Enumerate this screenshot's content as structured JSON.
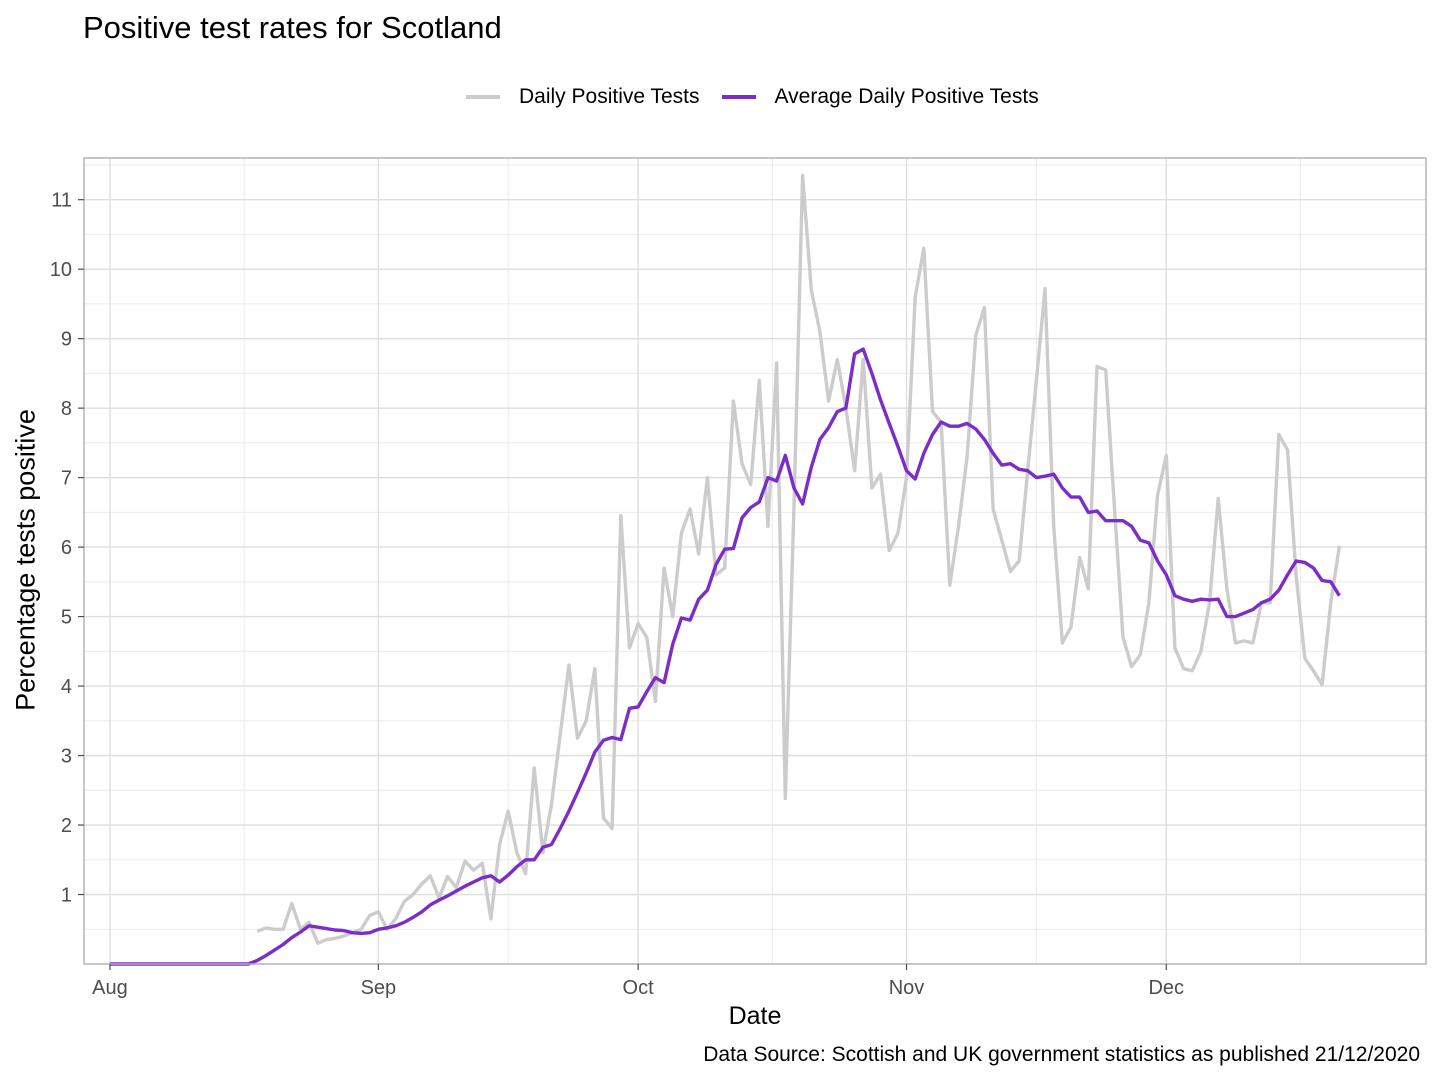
{
  "chart_data": {
    "type": "line",
    "title": "Positive test rates for Scotland",
    "xlabel": "Date",
    "ylabel": "Percentage tests positive",
    "caption": "Data Source: Scottish and UK government statistics as published 21/12/2020",
    "x_start": "2020-08-01",
    "x_end": "2020-12-21",
    "xlim": [
      "2020-07-29",
      "2020-12-31"
    ],
    "ylim": [
      0.0,
      11.6
    ],
    "x_ticks": [
      {
        "date": "2020-08-01",
        "label": "Aug"
      },
      {
        "date": "2020-09-01",
        "label": "Sep"
      },
      {
        "date": "2020-10-01",
        "label": "Oct"
      },
      {
        "date": "2020-11-01",
        "label": "Nov"
      },
      {
        "date": "2020-12-01",
        "label": "Dec"
      }
    ],
    "y_ticks": [
      {
        "value": 1,
        "label": "1"
      },
      {
        "value": 2,
        "label": "2"
      },
      {
        "value": 3,
        "label": "3"
      },
      {
        "value": 4,
        "label": "4"
      },
      {
        "value": 5,
        "label": "5"
      },
      {
        "value": 6,
        "label": "6"
      },
      {
        "value": 7,
        "label": "7"
      },
      {
        "value": 8,
        "label": "8"
      },
      {
        "value": 9,
        "label": "9"
      },
      {
        "value": 10,
        "label": "10"
      },
      {
        "value": 11,
        "label": "11"
      }
    ],
    "grid": true,
    "legend_position": "top",
    "series": [
      {
        "name": "Daily Positive Tests",
        "color": "#cccccc",
        "start_date": "2020-08-18",
        "values": [
          0.47,
          0.52,
          0.5,
          0.5,
          0.87,
          0.5,
          0.6,
          0.3,
          0.35,
          0.37,
          0.4,
          0.45,
          0.5,
          0.7,
          0.75,
          0.5,
          0.65,
          0.9,
          1.0,
          1.15,
          1.27,
          0.95,
          1.26,
          1.1,
          1.48,
          1.35,
          1.45,
          0.65,
          1.72,
          2.2,
          1.6,
          1.3,
          2.82,
          1.6,
          2.3,
          3.3,
          4.3,
          3.25,
          3.5,
          4.25,
          2.1,
          1.95,
          6.45,
          4.55,
          4.9,
          4.7,
          3.78,
          5.7,
          5.0,
          6.2,
          6.55,
          5.9,
          7.0,
          5.6,
          5.7,
          8.1,
          7.2,
          6.9,
          8.4,
          6.3,
          8.65,
          2.38,
          6.6,
          11.35,
          9.7,
          9.1,
          8.1,
          8.7,
          8.0,
          7.1,
          8.7,
          6.85,
          7.05,
          5.95,
          6.2,
          7.0,
          9.6,
          10.3,
          7.95,
          7.8,
          5.45,
          6.3,
          7.3,
          9.05,
          9.45,
          6.55,
          6.1,
          5.65,
          5.8,
          7.1,
          8.4,
          9.72,
          6.3,
          4.62,
          4.85,
          5.85,
          5.4,
          8.6,
          8.55,
          6.6,
          4.7,
          4.28,
          4.45,
          5.2,
          6.75,
          7.32,
          4.55,
          4.25,
          4.22,
          4.5,
          5.2,
          6.7,
          5.4,
          4.62,
          4.65,
          4.62,
          5.2,
          5.2,
          7.62,
          7.4,
          5.6,
          4.4,
          4.22,
          4.02,
          5.2,
          6.02
        ]
      },
      {
        "name": "Average Daily Positive Tests",
        "color": "#7b2dc8",
        "start_date": "2020-08-01",
        "values": [
          0,
          0,
          0,
          0,
          0,
          0,
          0,
          0,
          0,
          0,
          0,
          0,
          0,
          0,
          0,
          0,
          0,
          0.05,
          0.12,
          0.2,
          0.28,
          0.38,
          0.46,
          0.55,
          0.53,
          0.51,
          0.49,
          0.48,
          0.45,
          0.44,
          0.45,
          0.5,
          0.52,
          0.55,
          0.6,
          0.67,
          0.75,
          0.85,
          0.92,
          0.98,
          1.05,
          1.12,
          1.18,
          1.24,
          1.27,
          1.18,
          1.28,
          1.4,
          1.5,
          1.5,
          1.68,
          1.72,
          1.95,
          2.2,
          2.47,
          2.75,
          3.05,
          3.22,
          3.26,
          3.23,
          3.68,
          3.7,
          3.92,
          4.12,
          4.05,
          4.6,
          4.98,
          4.95,
          5.25,
          5.38,
          5.75,
          5.97,
          5.98,
          6.42,
          6.57,
          6.65,
          7.0,
          6.95,
          7.32,
          6.85,
          6.62,
          7.15,
          7.55,
          7.72,
          7.95,
          8.0,
          8.78,
          8.85,
          8.5,
          8.12,
          7.78,
          7.45,
          7.1,
          6.98,
          7.35,
          7.62,
          7.8,
          7.74,
          7.74,
          7.78,
          7.7,
          7.55,
          7.35,
          7.18,
          7.2,
          7.12,
          7.1,
          7.0,
          7.02,
          7.05,
          6.85,
          6.72,
          6.72,
          6.5,
          6.52,
          6.38,
          6.38,
          6.38,
          6.3,
          6.1,
          6.06,
          5.8,
          5.6,
          5.3,
          5.25,
          5.22,
          5.25,
          5.24,
          5.25,
          5.0,
          5.0,
          5.05,
          5.1,
          5.2,
          5.25,
          5.38,
          5.6,
          5.8,
          5.78,
          5.7,
          5.52,
          5.5,
          5.3
        ]
      }
    ]
  }
}
